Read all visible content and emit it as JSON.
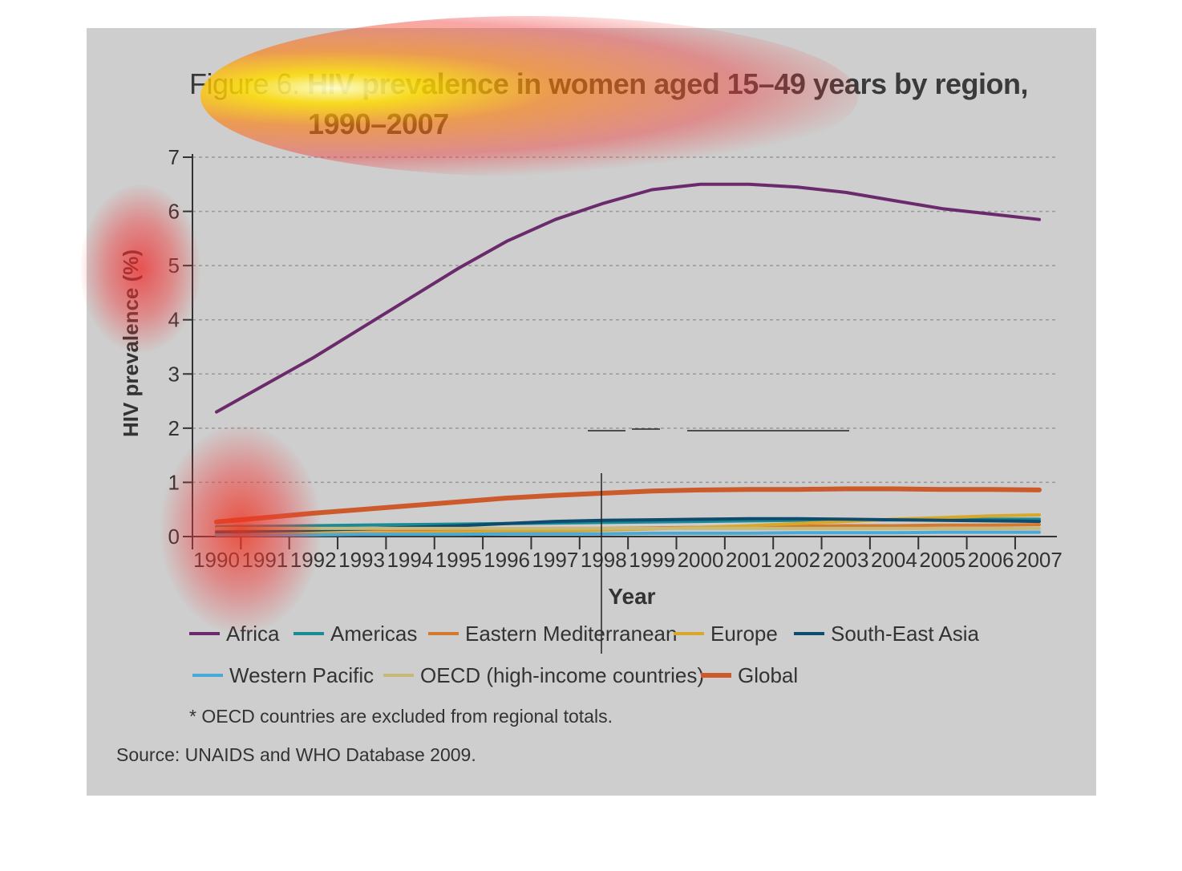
{
  "title": {
    "figure": "Figure 6.",
    "main": "HIV prevalence in women aged 15–49 years by region,",
    "line2": "1990–2007"
  },
  "chart_data": {
    "type": "line",
    "x": [
      1990,
      1991,
      1992,
      1993,
      1994,
      1995,
      1996,
      1997,
      1998,
      1999,
      2000,
      2001,
      2002,
      2003,
      2004,
      2005,
      2006,
      2007
    ],
    "xlabel": "Year",
    "ylabel": "HIV prevalence (%)",
    "ylim": [
      0,
      7
    ],
    "yticks": [
      0,
      1,
      2,
      3,
      4,
      5,
      6,
      7
    ],
    "grid": "horizontal dashed",
    "legend_position": "bottom",
    "series": [
      {
        "name": "Africa",
        "color": "#6b2a6b",
        "width": 4,
        "values": [
          2.3,
          2.8,
          3.3,
          3.85,
          4.4,
          4.95,
          5.45,
          5.85,
          6.15,
          6.4,
          6.5,
          6.5,
          6.45,
          6.35,
          6.2,
          6.05,
          5.95,
          5.85
        ]
      },
      {
        "name": "Americas",
        "color": "#1a8a96",
        "width": 4,
        "values": [
          0.18,
          0.19,
          0.2,
          0.21,
          0.22,
          0.23,
          0.24,
          0.25,
          0.26,
          0.27,
          0.28,
          0.29,
          0.3,
          0.3,
          0.31,
          0.31,
          0.32,
          0.32
        ]
      },
      {
        "name": "Eastern Mediterranean",
        "color": "#d47a2e",
        "width": 4,
        "values": [
          0.12,
          0.12,
          0.13,
          0.13,
          0.13,
          0.14,
          0.14,
          0.15,
          0.15,
          0.16,
          0.17,
          0.18,
          0.19,
          0.2,
          0.2,
          0.21,
          0.21,
          0.22
        ]
      },
      {
        "name": "Europe",
        "color": "#d9a82a",
        "width": 4,
        "values": [
          0.05,
          0.05,
          0.06,
          0.06,
          0.07,
          0.08,
          0.09,
          0.1,
          0.12,
          0.14,
          0.17,
          0.2,
          0.24,
          0.28,
          0.32,
          0.35,
          0.38,
          0.4
        ]
      },
      {
        "name": "South-East Asia",
        "color": "#0d4c6e",
        "width": 4,
        "values": [
          0.08,
          0.1,
          0.12,
          0.14,
          0.17,
          0.2,
          0.24,
          0.28,
          0.3,
          0.31,
          0.32,
          0.33,
          0.33,
          0.32,
          0.31,
          0.3,
          0.29,
          0.28
        ]
      },
      {
        "name": "Western Pacific",
        "color": "#4aa9d6",
        "width": 4,
        "values": [
          0.03,
          0.03,
          0.03,
          0.04,
          0.04,
          0.04,
          0.05,
          0.05,
          0.05,
          0.06,
          0.06,
          0.06,
          0.07,
          0.07,
          0.07,
          0.08,
          0.08,
          0.08
        ]
      },
      {
        "name": "OECD (high-income countries)",
        "color": "#c8b87a",
        "width": 4,
        "values": [
          0.15,
          0.15,
          0.15,
          0.15,
          0.15,
          0.15,
          0.15,
          0.15,
          0.15,
          0.15,
          0.15,
          0.15,
          0.15,
          0.15,
          0.15,
          0.15,
          0.15,
          0.15
        ]
      },
      {
        "name": "Global",
        "color": "#cc5a2a",
        "width": 6,
        "values": [
          0.27,
          0.35,
          0.43,
          0.5,
          0.57,
          0.64,
          0.71,
          0.76,
          0.8,
          0.84,
          0.86,
          0.87,
          0.87,
          0.88,
          0.88,
          0.87,
          0.87,
          0.86
        ]
      }
    ]
  },
  "legend": {
    "row1": [
      "Africa",
      "Americas",
      "Eastern Mediterranean",
      "Europe",
      "South-East Asia"
    ],
    "row2": [
      "Western Pacific",
      "OECD (high-income countries)",
      "Global"
    ]
  },
  "note": "* OECD countries are excluded from regional totals.",
  "source": "Source: UNAIDS and WHO Database 2009."
}
